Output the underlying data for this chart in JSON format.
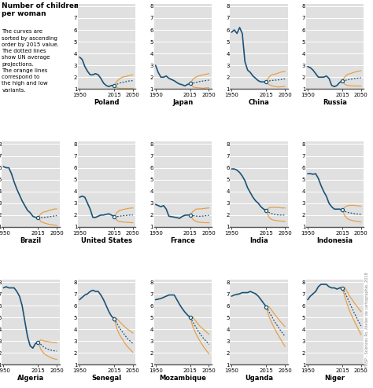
{
  "bg_color": "#e0e0e0",
  "blue": "#1a5276",
  "orange": "#e59a3a",
  "row0_countries": [
    "Poland",
    "Japan",
    "China",
    "Russia"
  ],
  "row1_countries": [
    "Brazil",
    "United States",
    "France",
    "India",
    "Indonesia"
  ],
  "row2_countries": [
    "Algeria",
    "Senegal",
    "Mozambique",
    "Uganda",
    "Niger"
  ],
  "years_hist": [
    1950,
    1955,
    1960,
    1965,
    1970,
    1975,
    1980,
    1985,
    1990,
    1995,
    2000,
    2005,
    2010,
    2015
  ],
  "years_proj": [
    2015,
    2020,
    2025,
    2030,
    2035,
    2040,
    2045,
    2050
  ],
  "data": {
    "Poland": {
      "hist": [
        3.7,
        3.5,
        2.9,
        2.5,
        2.2,
        2.2,
        2.3,
        2.2,
        1.9,
        1.5,
        1.3,
        1.2,
        1.3,
        1.3
      ],
      "proj_med": [
        1.3,
        1.4,
        1.5,
        1.55,
        1.6,
        1.65,
        1.7,
        1.7
      ],
      "proj_hi": [
        1.3,
        1.65,
        1.85,
        2.0,
        2.05,
        2.1,
        2.15,
        2.2
      ],
      "proj_lo": [
        1.3,
        1.1,
        1.05,
        1.05,
        1.05,
        1.05,
        1.05,
        1.05
      ]
    },
    "Japan": {
      "hist": [
        3.0,
        2.4,
        2.0,
        2.0,
        2.1,
        1.9,
        1.8,
        1.7,
        1.54,
        1.42,
        1.36,
        1.26,
        1.39,
        1.46
      ],
      "proj_med": [
        1.46,
        1.5,
        1.55,
        1.6,
        1.65,
        1.68,
        1.72,
        1.75
      ],
      "proj_hi": [
        1.46,
        1.82,
        2.0,
        2.1,
        2.15,
        2.2,
        2.25,
        2.3
      ],
      "proj_lo": [
        1.46,
        1.18,
        1.12,
        1.1,
        1.08,
        1.06,
        1.1,
        1.1
      ]
    },
    "China": {
      "hist": [
        5.8,
        6.0,
        5.7,
        6.2,
        5.7,
        3.3,
        2.6,
        2.4,
        2.1,
        1.9,
        1.7,
        1.6,
        1.6,
        1.6
      ],
      "proj_med": [
        1.6,
        1.68,
        1.72,
        1.74,
        1.76,
        1.78,
        1.82,
        1.85
      ],
      "proj_hi": [
        1.6,
        2.0,
        2.2,
        2.25,
        2.3,
        2.4,
        2.45,
        2.5
      ],
      "proj_lo": [
        1.6,
        1.38,
        1.28,
        1.22,
        1.18,
        1.18,
        1.2,
        1.22
      ]
    },
    "Russia": {
      "hist": [
        2.9,
        2.8,
        2.6,
        2.3,
        2.0,
        2.0,
        2.0,
        2.1,
        1.9,
        1.3,
        1.2,
        1.3,
        1.55,
        1.7
      ],
      "proj_med": [
        1.7,
        1.72,
        1.78,
        1.82,
        1.86,
        1.9,
        1.92,
        1.95
      ],
      "proj_hi": [
        1.7,
        2.05,
        2.25,
        2.3,
        2.38,
        2.45,
        2.5,
        2.55
      ],
      "proj_lo": [
        1.7,
        1.38,
        1.3,
        1.28,
        1.26,
        1.25,
        1.25,
        1.25
      ]
    },
    "Brazil": {
      "hist": [
        6.1,
        6.0,
        6.0,
        5.5,
        4.8,
        4.2,
        3.7,
        3.2,
        2.8,
        2.4,
        2.2,
        1.9,
        1.8,
        1.78
      ],
      "proj_med": [
        1.78,
        1.78,
        1.8,
        1.82,
        1.84,
        1.88,
        1.92,
        1.95
      ],
      "proj_hi": [
        1.78,
        2.1,
        2.25,
        2.3,
        2.38,
        2.45,
        2.5,
        2.52
      ],
      "proj_lo": [
        1.78,
        1.45,
        1.35,
        1.28,
        1.22,
        1.18,
        1.15,
        1.12
      ]
    },
    "United States": {
      "hist": [
        3.5,
        3.6,
        3.5,
        3.0,
        2.5,
        1.8,
        1.8,
        1.9,
        2.0,
        2.0,
        2.06,
        2.1,
        2.0,
        1.86
      ],
      "proj_med": [
        1.86,
        1.88,
        1.9,
        1.94,
        1.96,
        1.98,
        2.0,
        2.0
      ],
      "proj_hi": [
        1.86,
        2.2,
        2.38,
        2.45,
        2.5,
        2.55,
        2.58,
        2.6
      ],
      "proj_lo": [
        1.86,
        1.55,
        1.44,
        1.42,
        1.4,
        1.38,
        1.36,
        1.35
      ]
    },
    "France": {
      "hist": [
        2.9,
        2.8,
        2.7,
        2.8,
        2.5,
        1.9,
        1.86,
        1.82,
        1.78,
        1.72,
        1.88,
        1.98,
        2.0,
        2.0
      ],
      "proj_med": [
        2.0,
        1.96,
        1.92,
        1.9,
        1.9,
        1.92,
        1.95,
        1.97
      ],
      "proj_hi": [
        2.0,
        2.3,
        2.48,
        2.52,
        2.52,
        2.55,
        2.58,
        2.6
      ],
      "proj_lo": [
        2.0,
        1.62,
        1.48,
        1.4,
        1.38,
        1.36,
        1.35,
        1.35
      ]
    },
    "India": {
      "hist": [
        5.9,
        5.9,
        5.8,
        5.6,
        5.3,
        4.9,
        4.3,
        3.9,
        3.5,
        3.2,
        3.0,
        2.7,
        2.5,
        2.4
      ],
      "proj_med": [
        2.4,
        2.22,
        2.12,
        2.06,
        2.02,
        2.0,
        2.0,
        2.0
      ],
      "proj_hi": [
        2.4,
        2.6,
        2.65,
        2.65,
        2.65,
        2.62,
        2.6,
        2.6
      ],
      "proj_lo": [
        2.4,
        1.82,
        1.62,
        1.56,
        1.52,
        1.5,
        1.48,
        1.46
      ]
    },
    "Indonesia": {
      "hist": [
        5.5,
        5.5,
        5.45,
        5.5,
        5.1,
        4.5,
        4.0,
        3.6,
        3.0,
        2.7,
        2.5,
        2.5,
        2.5,
        2.42
      ],
      "proj_med": [
        2.42,
        2.3,
        2.22,
        2.18,
        2.14,
        2.1,
        2.08,
        2.06
      ],
      "proj_hi": [
        2.42,
        2.68,
        2.8,
        2.82,
        2.82,
        2.8,
        2.78,
        2.75
      ],
      "proj_lo": [
        2.42,
        1.9,
        1.68,
        1.58,
        1.52,
        1.48,
        1.44,
        1.42
      ]
    },
    "Algeria": {
      "hist": [
        7.5,
        7.6,
        7.5,
        7.5,
        7.5,
        7.2,
        6.8,
        6.0,
        4.7,
        3.4,
        2.6,
        2.4,
        2.8,
        2.9
      ],
      "proj_med": [
        2.9,
        2.72,
        2.52,
        2.38,
        2.28,
        2.22,
        2.18,
        2.15
      ],
      "proj_hi": [
        2.9,
        3.1,
        3.02,
        2.98,
        2.95,
        2.9,
        2.88,
        2.85
      ],
      "proj_lo": [
        2.9,
        2.32,
        1.98,
        1.82,
        1.68,
        1.58,
        1.5,
        1.45
      ]
    },
    "Senegal": {
      "hist": [
        6.5,
        6.7,
        6.9,
        7.0,
        7.2,
        7.3,
        7.2,
        7.2,
        6.9,
        6.5,
        6.0,
        5.5,
        5.1,
        4.9
      ],
      "proj_med": [
        4.9,
        4.5,
        4.1,
        3.8,
        3.5,
        3.2,
        3.0,
        2.8
      ],
      "proj_hi": [
        4.9,
        4.92,
        4.65,
        4.42,
        4.2,
        4.0,
        3.85,
        3.68
      ],
      "proj_lo": [
        4.9,
        4.05,
        3.55,
        3.18,
        2.82,
        2.52,
        2.28,
        2.05
      ]
    },
    "Mozambique": {
      "hist": [
        6.5,
        6.55,
        6.6,
        6.7,
        6.8,
        6.9,
        6.9,
        6.9,
        6.5,
        6.1,
        5.75,
        5.45,
        5.2,
        5.0
      ],
      "proj_med": [
        5.0,
        4.62,
        4.22,
        3.85,
        3.52,
        3.22,
        2.98,
        2.72
      ],
      "proj_hi": [
        5.0,
        5.02,
        4.72,
        4.42,
        4.18,
        3.98,
        3.78,
        3.58
      ],
      "proj_lo": [
        5.0,
        4.2,
        3.68,
        3.25,
        2.88,
        2.52,
        2.22,
        1.92
      ]
    },
    "Uganda": {
      "hist": [
        6.8,
        6.9,
        6.95,
        7.0,
        7.1,
        7.1,
        7.1,
        7.2,
        7.1,
        7.0,
        6.8,
        6.5,
        6.2,
        5.9
      ],
      "proj_med": [
        5.9,
        5.5,
        5.1,
        4.7,
        4.35,
        4.0,
        3.7,
        3.42
      ],
      "proj_hi": [
        5.9,
        5.92,
        5.62,
        5.3,
        5.02,
        4.72,
        4.48,
        4.22
      ],
      "proj_lo": [
        5.9,
        5.08,
        4.58,
        4.1,
        3.68,
        3.3,
        2.92,
        2.55
      ]
    },
    "Niger": {
      "hist": [
        6.5,
        6.8,
        7.0,
        7.2,
        7.6,
        7.8,
        7.8,
        7.8,
        7.6,
        7.5,
        7.5,
        7.4,
        7.5,
        7.5
      ],
      "proj_med": [
        7.5,
        7.1,
        6.6,
        6.1,
        5.6,
        5.15,
        4.7,
        4.28
      ],
      "proj_hi": [
        7.5,
        7.52,
        7.1,
        6.72,
        6.4,
        6.08,
        5.78,
        5.5
      ],
      "proj_lo": [
        7.5,
        6.68,
        6.0,
        5.42,
        4.92,
        4.45,
        4.0,
        3.55
      ]
    }
  }
}
